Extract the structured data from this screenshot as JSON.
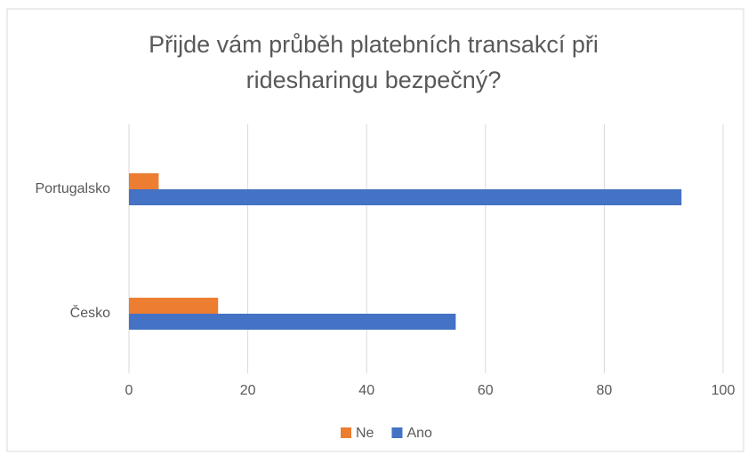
{
  "chart_data": {
    "type": "barh",
    "title": "Přijde vám průběh platebních transakcí při ridesharingu bezpečný?",
    "categories": [
      "Česko",
      "Portugalsko"
    ],
    "series": [
      {
        "name": "Ne",
        "color": "#ed7d31",
        "values": [
          15,
          5
        ]
      },
      {
        "name": "Ano",
        "color": "#4472c4",
        "values": [
          55,
          93
        ]
      }
    ],
    "xlim": [
      0,
      100
    ],
    "xticks": [
      0,
      20,
      40,
      60,
      80,
      100
    ],
    "grid": true,
    "legend": "bottom"
  }
}
